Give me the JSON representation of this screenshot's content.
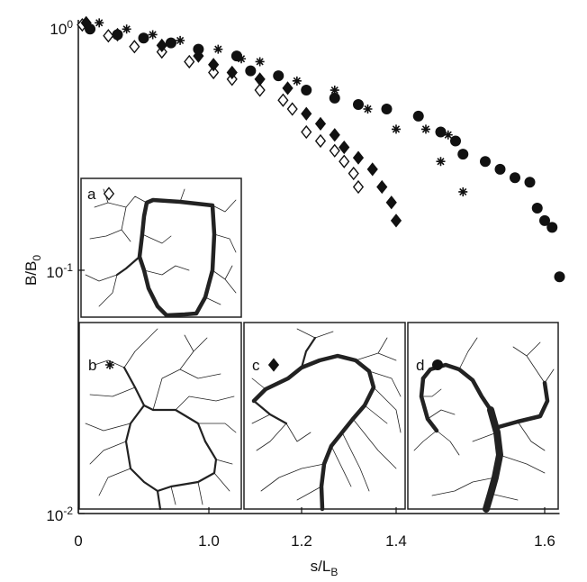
{
  "chart_data": {
    "type": "scatter",
    "x_label": "s/L_B",
    "y_label": "B/B_0",
    "log_y": true,
    "xlim": [
      0,
      1.62
    ],
    "ylim": [
      0.01,
      1.07
    ],
    "xticks": [
      0,
      {
        "value": 1.0,
        "label": "1.0"
      },
      1.2,
      1.4,
      1.6
    ],
    "yticks": [
      {
        "value": 1,
        "label": "10^0"
      },
      {
        "value": 0.1,
        "label": "10^-1"
      },
      {
        "value": 0.01,
        "label": "10^-2"
      }
    ],
    "series": [
      {
        "name": "a",
        "marker": "open-diamond",
        "color": "#111111",
        "x": [
          0.03,
          0.23,
          0.43,
          0.64,
          0.85,
          1.01,
          1.05,
          1.11,
          1.16,
          1.18,
          1.21,
          1.24,
          1.27,
          1.29,
          1.31,
          1.32
        ],
        "values": [
          1.02,
          0.92,
          0.83,
          0.79,
          0.72,
          0.65,
          0.61,
          0.55,
          0.5,
          0.46,
          0.37,
          0.34,
          0.31,
          0.28,
          0.25,
          0.22
        ]
      },
      {
        "name": "b",
        "marker": "asterisk",
        "color": "#111111",
        "x": [
          0.16,
          0.37,
          0.57,
          0.78,
          1.02,
          1.07,
          1.11,
          1.19,
          1.27,
          1.34,
          1.4,
          1.44,
          1.47,
          1.46,
          1.49
        ],
        "values": [
          1.04,
          0.98,
          0.93,
          0.88,
          0.81,
          0.74,
          0.72,
          0.6,
          0.55,
          0.46,
          0.38,
          0.38,
          0.36,
          0.28,
          0.21
        ]
      },
      {
        "name": "c",
        "marker": "diamond",
        "color": "#111111",
        "x": [
          0.06,
          0.3,
          0.64,
          0.92,
          1.01,
          1.05,
          1.11,
          1.17,
          1.21,
          1.24,
          1.27,
          1.29,
          1.32,
          1.35,
          1.37,
          1.39,
          1.4
        ],
        "values": [
          1.04,
          0.93,
          0.84,
          0.76,
          0.7,
          0.65,
          0.61,
          0.56,
          0.44,
          0.4,
          0.36,
          0.32,
          0.29,
          0.26,
          0.22,
          0.19,
          0.16
        ]
      },
      {
        "name": "d",
        "marker": "circle",
        "color": "#111111",
        "x": [
          0.09,
          0.3,
          0.5,
          0.71,
          0.92,
          1.06,
          1.09,
          1.15,
          1.21,
          1.27,
          1.32,
          1.38,
          1.43,
          1.46,
          1.48,
          1.49,
          1.52,
          1.54,
          1.56,
          1.58,
          1.59,
          1.6,
          1.61,
          1.62
        ],
        "values": [
          0.98,
          0.93,
          0.9,
          0.86,
          0.81,
          0.76,
          0.66,
          0.63,
          0.55,
          0.51,
          0.48,
          0.46,
          0.43,
          0.37,
          0.34,
          0.3,
          0.28,
          0.26,
          0.24,
          0.23,
          0.18,
          0.16,
          0.15,
          0.094
        ]
      }
    ]
  }
}
